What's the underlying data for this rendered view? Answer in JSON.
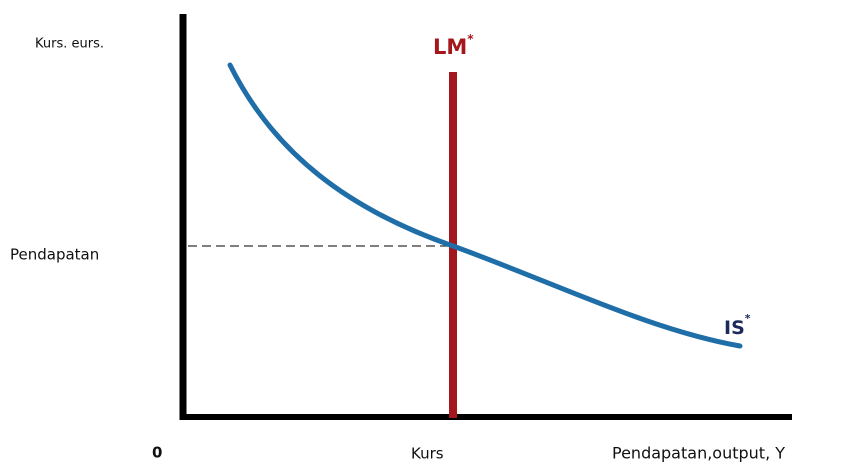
{
  "y_axis_label": "Kurs. eurs.",
  "lm_label": {
    "text": "LM",
    "superscript": "*"
  },
  "is_label": {
    "text": "IS",
    "superscript": "*"
  },
  "y_level_label": "Pendapatan",
  "origin_label": "0",
  "x_level_label": "Kurs",
  "x_axis_label": "Pendapatan,output, Y"
}
